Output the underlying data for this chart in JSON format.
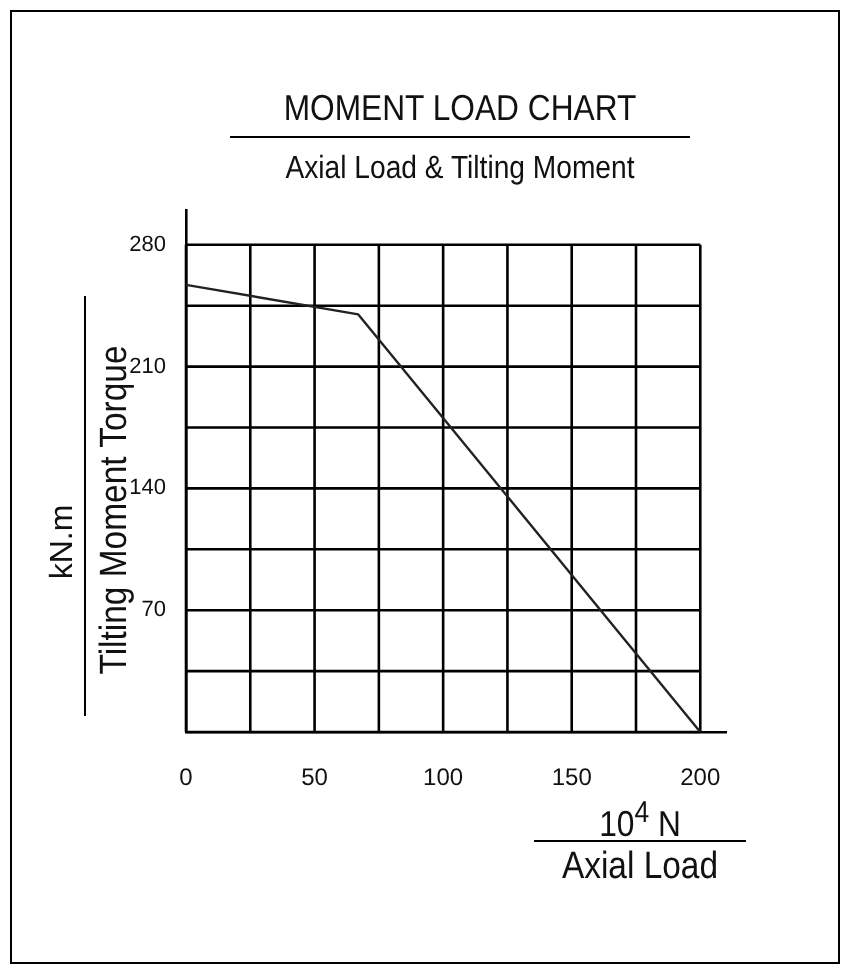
{
  "chart_data": {
    "type": "line",
    "title": "MOMENT LOAD CHART",
    "subtitle": "Axial Load & Tilting Moment",
    "xlabel": "Axial Load",
    "ylabel": "Tilting Moment Torque",
    "annotations": [
      "10$^{4}$ N",
      "kN.m"
    ],
    "x": [
      0,
      67,
      200
    ],
    "series": [
      {
        "color": "#222222",
        "values": [
          257,
          240,
          0
        ]
      }
    ],
    "xlim": [
      0,
      210
    ],
    "ylim": [
      0,
      300
    ],
    "xticks": [
      0,
      {
        "value": 25,
        "label": null
      },
      50,
      {
        "value": 75,
        "label": null
      },
      100,
      {
        "value": 125,
        "label": null
      },
      150,
      {
        "value": 175,
        "label": null
      },
      200
    ],
    "yticks": [
      {
        "value": 0,
        "label": null
      },
      {
        "value": 35,
        "label": null
      },
      70,
      {
        "value": 105,
        "label": null
      },
      140,
      {
        "value": 175,
        "label": null
      },
      210,
      {
        "value": 245,
        "label": null
      },
      280
    ],
    "grid": true,
    "legend": false,
    "marker": "none",
    "line_style": "solid"
  }
}
